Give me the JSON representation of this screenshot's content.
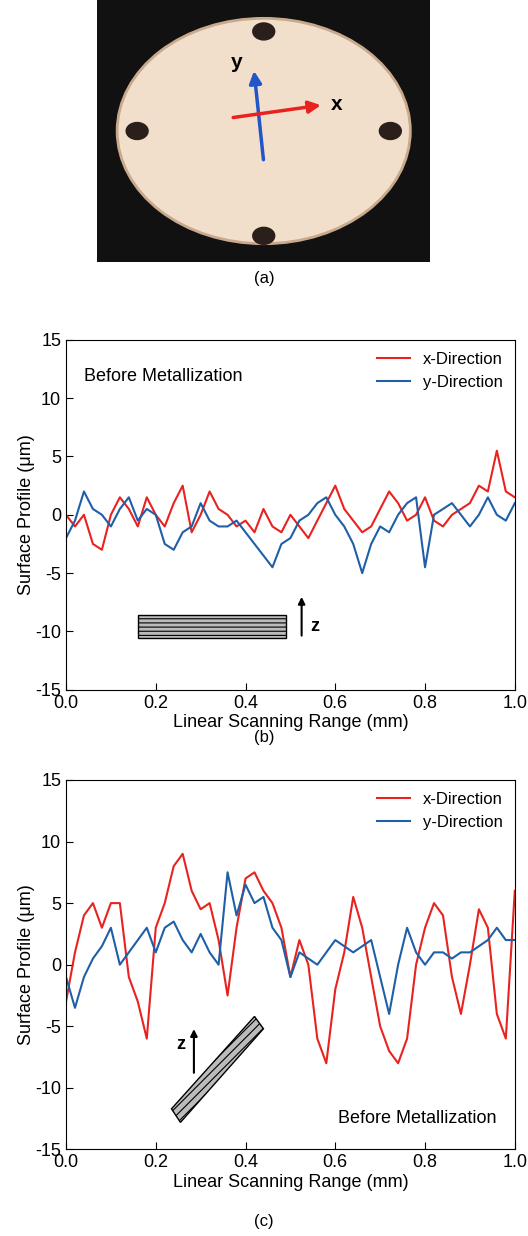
{
  "chart_data": [
    {
      "type": "image",
      "caption": "(a)",
      "annotations": [
        "y",
        "x"
      ]
    },
    {
      "type": "line",
      "caption": "(b)",
      "x_label": "Linear Scanning Range (mm)",
      "y_label": "Surface Profile (μm)",
      "x": [
        0,
        0.02,
        0.04,
        0.06,
        0.08,
        0.1,
        0.12,
        0.14,
        0.16,
        0.18,
        0.2,
        0.22,
        0.24,
        0.26,
        0.28,
        0.3,
        0.32,
        0.34,
        0.36,
        0.38,
        0.4,
        0.42,
        0.44,
        0.46,
        0.48,
        0.5,
        0.52,
        0.54,
        0.56,
        0.58,
        0.6,
        0.62,
        0.64,
        0.66,
        0.68,
        0.7,
        0.72,
        0.74,
        0.76,
        0.78,
        0.8,
        0.82,
        0.84,
        0.86,
        0.88,
        0.9,
        0.92,
        0.94,
        0.96,
        0.98,
        1.0
      ],
      "series": [
        {
          "name": "x-Direction",
          "color": "#e8231f",
          "values": [
            0,
            -1,
            0,
            -2.5,
            -3,
            0,
            1.5,
            0.5,
            -1,
            1.5,
            0,
            -1,
            1,
            2.5,
            -1.5,
            0,
            2,
            0.5,
            0,
            -1,
            -0.5,
            -1.5,
            0.5,
            -1,
            -1.5,
            0,
            -1,
            -2,
            -0.5,
            1,
            2.5,
            0.5,
            -0.5,
            -1.5,
            -1,
            0.5,
            2,
            1,
            -0.5,
            0,
            1.5,
            -0.5,
            -1,
            0,
            0.5,
            1,
            2.5,
            2,
            5.5,
            2,
            1.5
          ]
        },
        {
          "name": "y-Direction",
          "color": "#1f5fa8",
          "values": [
            -2,
            -0.5,
            2,
            0.5,
            0,
            -1,
            0.5,
            1.5,
            -0.5,
            0.5,
            0,
            -2.5,
            -3,
            -1.5,
            -1,
            1,
            -0.5,
            -1,
            -1,
            -0.5,
            -1.5,
            -2.5,
            -3.5,
            -4.5,
            -2.5,
            -2,
            -0.5,
            0,
            1,
            1.5,
            0,
            -1,
            -2.5,
            -5,
            -2.5,
            -1,
            -1.5,
            0,
            1,
            1.5,
            -4.5,
            0,
            0.5,
            1,
            0,
            -1,
            0,
            1.5,
            0,
            -0.5,
            1
          ]
        }
      ],
      "xlim": [
        0.0,
        1.0
      ],
      "ylim": [
        -15,
        15
      ],
      "xticks": [
        0.0,
        0.2,
        0.4,
        0.6,
        0.8,
        1.0
      ],
      "yticks": [
        -15,
        -10,
        -5,
        0,
        5,
        10,
        15
      ],
      "legend": "upper right",
      "annotations": [
        "Before Metallization",
        "z"
      ]
    },
    {
      "type": "line",
      "caption": "(c)",
      "x_label": "Linear Scanning Range (mm)",
      "y_label": "Surface Profile (μm)",
      "x": [
        0,
        0.02,
        0.04,
        0.06,
        0.08,
        0.1,
        0.12,
        0.14,
        0.16,
        0.18,
        0.2,
        0.22,
        0.24,
        0.26,
        0.28,
        0.3,
        0.32,
        0.34,
        0.36,
        0.38,
        0.4,
        0.42,
        0.44,
        0.46,
        0.48,
        0.5,
        0.52,
        0.54,
        0.56,
        0.58,
        0.6,
        0.62,
        0.64,
        0.66,
        0.68,
        0.7,
        0.72,
        0.74,
        0.76,
        0.78,
        0.8,
        0.82,
        0.84,
        0.86,
        0.88,
        0.9,
        0.92,
        0.94,
        0.96,
        0.98,
        1.0
      ],
      "series": [
        {
          "name": "x-Direction",
          "color": "#e8231f",
          "values": [
            -3,
            1,
            4,
            5,
            3,
            5,
            5,
            -1,
            -3,
            -6,
            3,
            5,
            8,
            9,
            6,
            4.5,
            5,
            2,
            -2.5,
            3,
            7,
            7.5,
            6,
            5,
            3,
            -1,
            2,
            0,
            -6,
            -8,
            -2,
            1,
            5.5,
            3,
            -1,
            -5,
            -7,
            -8,
            -6,
            0,
            3,
            5,
            4,
            -1,
            -4,
            0,
            4.5,
            3,
            -4,
            -6,
            6
          ]
        },
        {
          "name": "y-Direction",
          "color": "#1f5fa8",
          "values": [
            -1,
            -3.5,
            -1,
            0.5,
            1.5,
            3,
            0,
            1,
            2,
            3,
            1,
            3,
            3.5,
            2,
            1,
            2.5,
            1,
            0,
            7.5,
            4,
            6.5,
            5,
            5.5,
            3,
            2,
            -1,
            1,
            0.5,
            0,
            1,
            2,
            1.5,
            1,
            1.5,
            2,
            -1,
            -4,
            0,
            3,
            1,
            0,
            1,
            1,
            0.5,
            1,
            1,
            1.5,
            2,
            3,
            2,
            2
          ]
        }
      ],
      "xlim": [
        0.0,
        1.0
      ],
      "ylim": [
        -15,
        15
      ],
      "xticks": [
        0.0,
        0.2,
        0.4,
        0.6,
        0.8,
        1.0
      ],
      "yticks": [
        -15,
        -10,
        -5,
        0,
        5,
        10,
        15
      ],
      "legend": "upper right",
      "annotations": [
        "Before Metallization",
        "z"
      ]
    }
  ]
}
